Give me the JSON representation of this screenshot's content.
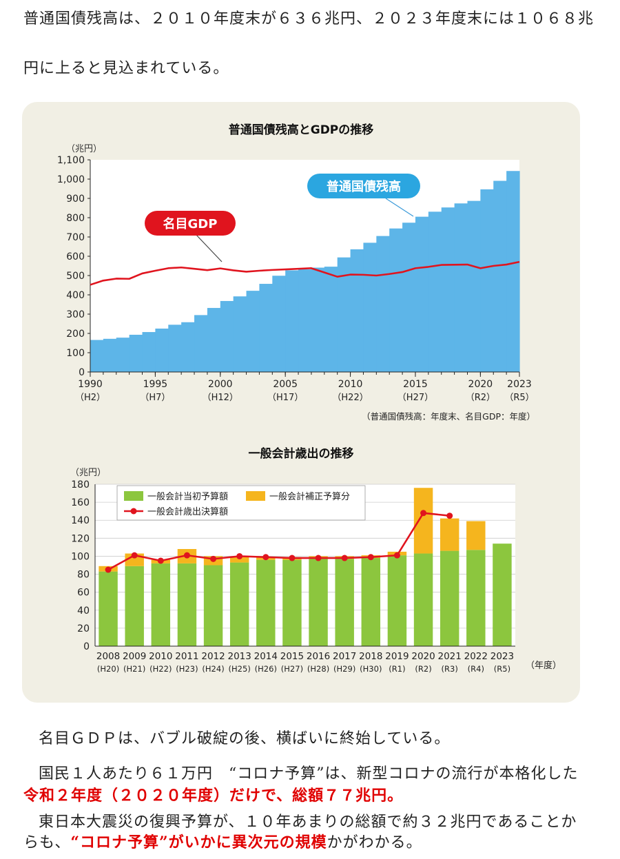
{
  "text": {
    "p1_line1": "普通国債残高は、２０１０年度末が６３６兆円、２０２３年度末には１０６８兆",
    "p1_line2": "円に上ると見込まれている。",
    "p2": "名目ＧＤＰは、バブル破綻の後、横ばいに終始している。",
    "p3_line1": "国民１人あたり６１万円　“コロナ予算”は、新型コロナの流行が本格化した",
    "p3_line2_red": "令和２年度（２０２０年度）だけで、総額７７兆円。",
    "p4_line1": "東日本大震災の復興予算が、１０年あまりの総額で約３２兆円であることか",
    "p4_line2_a": "らも、",
    "p4_line2_red": "“コロナ予算”がいかに異次元の規模",
    "p4_line2_b": "かがわかる。"
  },
  "colors": {
    "debt_blue": "#5db5e8",
    "gdp_red": "#e0141e",
    "initial_green": "#8cc63e",
    "supplement_orange": "#f5b51e",
    "panel_bg": "#f1efe4"
  },
  "chart_data": [
    {
      "type": "area",
      "title": "普通国債残高とGDPの推移",
      "yunit": "（兆円）",
      "ylim": [
        0,
        1100
      ],
      "yticks": [
        "0",
        "100",
        "200",
        "300",
        "400",
        "500",
        "600",
        "700",
        "800",
        "900",
        "1,000",
        "1,100"
      ],
      "x_tick_labels": [
        {
          "year": "1990",
          "era": "（H2）"
        },
        {
          "year": "1995",
          "era": "（H7）"
        },
        {
          "year": "2000",
          "era": "（H12）"
        },
        {
          "year": "2005",
          "era": "（H17）"
        },
        {
          "year": "2010",
          "era": "（H22）"
        },
        {
          "year": "2015",
          "era": "（H27）"
        },
        {
          "year": "2020",
          "era": "（R2）"
        },
        {
          "year": "2023",
          "era": "（R5）"
        }
      ],
      "note": "（普通国債残高：年度末、名目GDP：年度）",
      "x": [
        1990,
        1991,
        1992,
        1993,
        1994,
        1995,
        1996,
        1997,
        1998,
        1999,
        2000,
        2001,
        2002,
        2003,
        2004,
        2005,
        2006,
        2007,
        2008,
        2009,
        2010,
        2011,
        2012,
        2013,
        2014,
        2015,
        2016,
        2017,
        2018,
        2019,
        2020,
        2021,
        2022,
        2023
      ],
      "series": [
        {
          "name": "普通国債残高",
          "kind": "step-area",
          "values": [
            166,
            172,
            178,
            193,
            207,
            225,
            245,
            258,
            295,
            332,
            368,
            392,
            421,
            457,
            499,
            527,
            532,
            541,
            546,
            594,
            636,
            670,
            705,
            744,
            774,
            805,
            831,
            853,
            874,
            887,
            947,
            991,
            1042,
            1068
          ]
        },
        {
          "name": "名目GDP",
          "kind": "line",
          "values": [
            452,
            474,
            484,
            483,
            511,
            525,
            538,
            542,
            535,
            528,
            537,
            527,
            520,
            525,
            529,
            532,
            535,
            538,
            516,
            494,
            505,
            504,
            500,
            508,
            518,
            538,
            545,
            555,
            556,
            557,
            538,
            550,
            557,
            571
          ]
        }
      ]
    },
    {
      "type": "bar",
      "title": "一般会計歳出の推移",
      "yunit": "（兆円）",
      "xunit": "（年度）",
      "ylim": [
        0,
        180
      ],
      "yticks": [
        "0",
        "20",
        "40",
        "60",
        "80",
        "100",
        "120",
        "140",
        "160",
        "180"
      ],
      "categories": [
        "2008",
        "2009",
        "2010",
        "2011",
        "2012",
        "2013",
        "2014",
        "2015",
        "2016",
        "2017",
        "2018",
        "2019",
        "2020",
        "2021",
        "2022",
        "2023"
      ],
      "era_labels": [
        "(H20)",
        "(H21)",
        "(H22)",
        "(H23)",
        "(H24)",
        "(H25)",
        "(H26)",
        "(H27)",
        "(H28)",
        "(H29)",
        "(H30)",
        "(R1)",
        "(R2)",
        "(R3)",
        "(R4)",
        "(R5)"
      ],
      "series": [
        {
          "name": "一般会計当初予算額",
          "kind": "bar",
          "values": [
            83,
            89,
            92,
            92,
            90,
            93,
            96,
            96,
            97,
            97,
            98,
            101,
            103,
            106,
            107,
            114
          ]
        },
        {
          "name": "一般会計補正予算分",
          "kind": "stacked-bar",
          "values": [
            6,
            14,
            4,
            16,
            10,
            6,
            3,
            3,
            3,
            3,
            3,
            4,
            73,
            36,
            32,
            0
          ]
        },
        {
          "name": "一般会計歳出決算額",
          "kind": "line",
          "values": [
            85,
            101,
            95,
            101,
            97,
            100,
            99,
            98,
            98,
            98,
            99,
            101,
            148,
            145,
            null,
            null
          ]
        }
      ]
    }
  ]
}
